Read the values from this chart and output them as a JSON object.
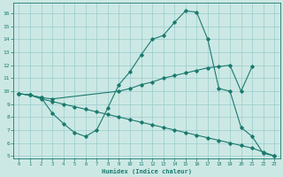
{
  "xlabel": "Humidex (Indice chaleur)",
  "bg_color": "#cce8e4",
  "grid_color": "#99cccc",
  "line_color": "#1a7a6e",
  "xlim": [
    -0.5,
    23.5
  ],
  "ylim": [
    4.8,
    16.8
  ],
  "yticks": [
    5,
    6,
    7,
    8,
    9,
    10,
    11,
    12,
    13,
    14,
    15,
    16
  ],
  "xticks": [
    0,
    1,
    2,
    3,
    4,
    5,
    6,
    7,
    8,
    9,
    10,
    11,
    12,
    13,
    14,
    15,
    16,
    17,
    18,
    19,
    20,
    21,
    22,
    23
  ],
  "line1_x": [
    0,
    1,
    2,
    3,
    4,
    5,
    6,
    7,
    8,
    9,
    10,
    11,
    12,
    13,
    14,
    15,
    16,
    17,
    18,
    19,
    20,
    21,
    22,
    23
  ],
  "line1_y": [
    9.8,
    9.7,
    9.5,
    8.3,
    7.5,
    6.8,
    6.5,
    7.0,
    8.7,
    10.5,
    11.5,
    12.8,
    14.0,
    14.3,
    15.3,
    16.2,
    16.1,
    14.0,
    10.2,
    10.0,
    7.2,
    6.5,
    5.2,
    5.0
  ],
  "line2_x": [
    0,
    1,
    2,
    3,
    9,
    10,
    11,
    12,
    13,
    14,
    15,
    16,
    17,
    18,
    19,
    20,
    21
  ],
  "line2_y": [
    9.8,
    9.7,
    9.5,
    9.4,
    10.0,
    10.2,
    10.5,
    10.7,
    11.0,
    11.2,
    11.4,
    11.6,
    11.8,
    11.9,
    12.0,
    10.0,
    11.9
  ],
  "line3_x": [
    0,
    1,
    2,
    3,
    4,
    5,
    6,
    7,
    8,
    9,
    10,
    11,
    12,
    13,
    14,
    15,
    16,
    17,
    18,
    19,
    20,
    21,
    22,
    23
  ],
  "line3_y": [
    9.8,
    9.7,
    9.4,
    9.2,
    9.0,
    8.8,
    8.6,
    8.4,
    8.2,
    8.0,
    7.8,
    7.6,
    7.4,
    7.2,
    7.0,
    6.8,
    6.6,
    6.4,
    6.2,
    6.0,
    5.8,
    5.6,
    5.3,
    5.0
  ]
}
